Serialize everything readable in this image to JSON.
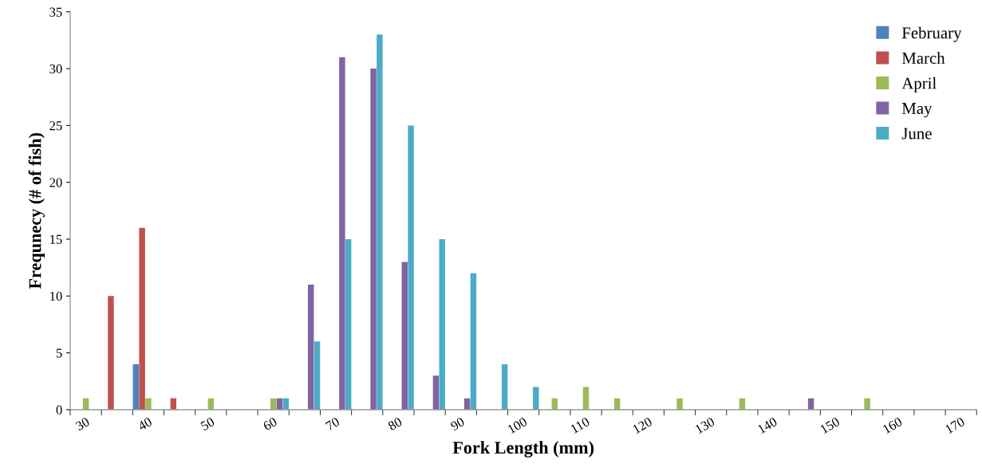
{
  "chart_data": {
    "type": "bar",
    "xlabel": "Fork Length (mm)",
    "ylabel": "Frequnecy (# of fish)",
    "categories": [
      "30",
      null,
      "40",
      null,
      "50",
      null,
      "60",
      null,
      "70",
      null,
      "80",
      null,
      "90",
      null,
      "100",
      null,
      "110",
      null,
      "120",
      null,
      "130",
      null,
      "140",
      null,
      "150",
      null,
      "160",
      null,
      "170"
    ],
    "series": [
      {
        "name": "February",
        "color": "#4f81bd",
        "values": [
          null,
          null,
          4,
          null,
          null,
          null,
          null,
          null,
          null,
          null,
          null,
          null,
          null,
          null,
          null,
          null,
          null,
          null,
          null,
          null,
          null,
          null,
          null,
          null,
          null,
          null,
          null,
          null,
          null
        ]
      },
      {
        "name": "March",
        "color": "#c0504d",
        "values": [
          null,
          10,
          16,
          1,
          null,
          null,
          null,
          null,
          null,
          null,
          null,
          null,
          null,
          null,
          null,
          null,
          null,
          null,
          null,
          null,
          null,
          null,
          null,
          null,
          null,
          null,
          null,
          null,
          null
        ]
      },
      {
        "name": "April",
        "color": "#9bbb59",
        "values": [
          1,
          null,
          1,
          null,
          1,
          null,
          1,
          null,
          null,
          null,
          null,
          null,
          null,
          null,
          null,
          1,
          2,
          1,
          null,
          1,
          null,
          1,
          null,
          null,
          null,
          1,
          null,
          null,
          null
        ]
      },
      {
        "name": "May",
        "color": "#8064a2",
        "values": [
          null,
          null,
          null,
          null,
          null,
          null,
          1,
          11,
          31,
          30,
          13,
          3,
          1,
          null,
          null,
          null,
          null,
          null,
          null,
          null,
          null,
          null,
          null,
          1,
          null,
          null,
          null,
          null,
          null
        ]
      },
      {
        "name": "June",
        "color": "#4bacc6",
        "values": [
          null,
          null,
          null,
          null,
          null,
          null,
          1,
          6,
          15,
          33,
          25,
          15,
          12,
          4,
          2,
          null,
          null,
          null,
          null,
          null,
          null,
          null,
          null,
          null,
          null,
          null,
          null,
          null,
          null
        ]
      }
    ],
    "ylim": [
      0,
      35
    ],
    "yticks": [
      0,
      5,
      10,
      15,
      20,
      25,
      30,
      35
    ],
    "grid": false,
    "legend": "top right"
  }
}
